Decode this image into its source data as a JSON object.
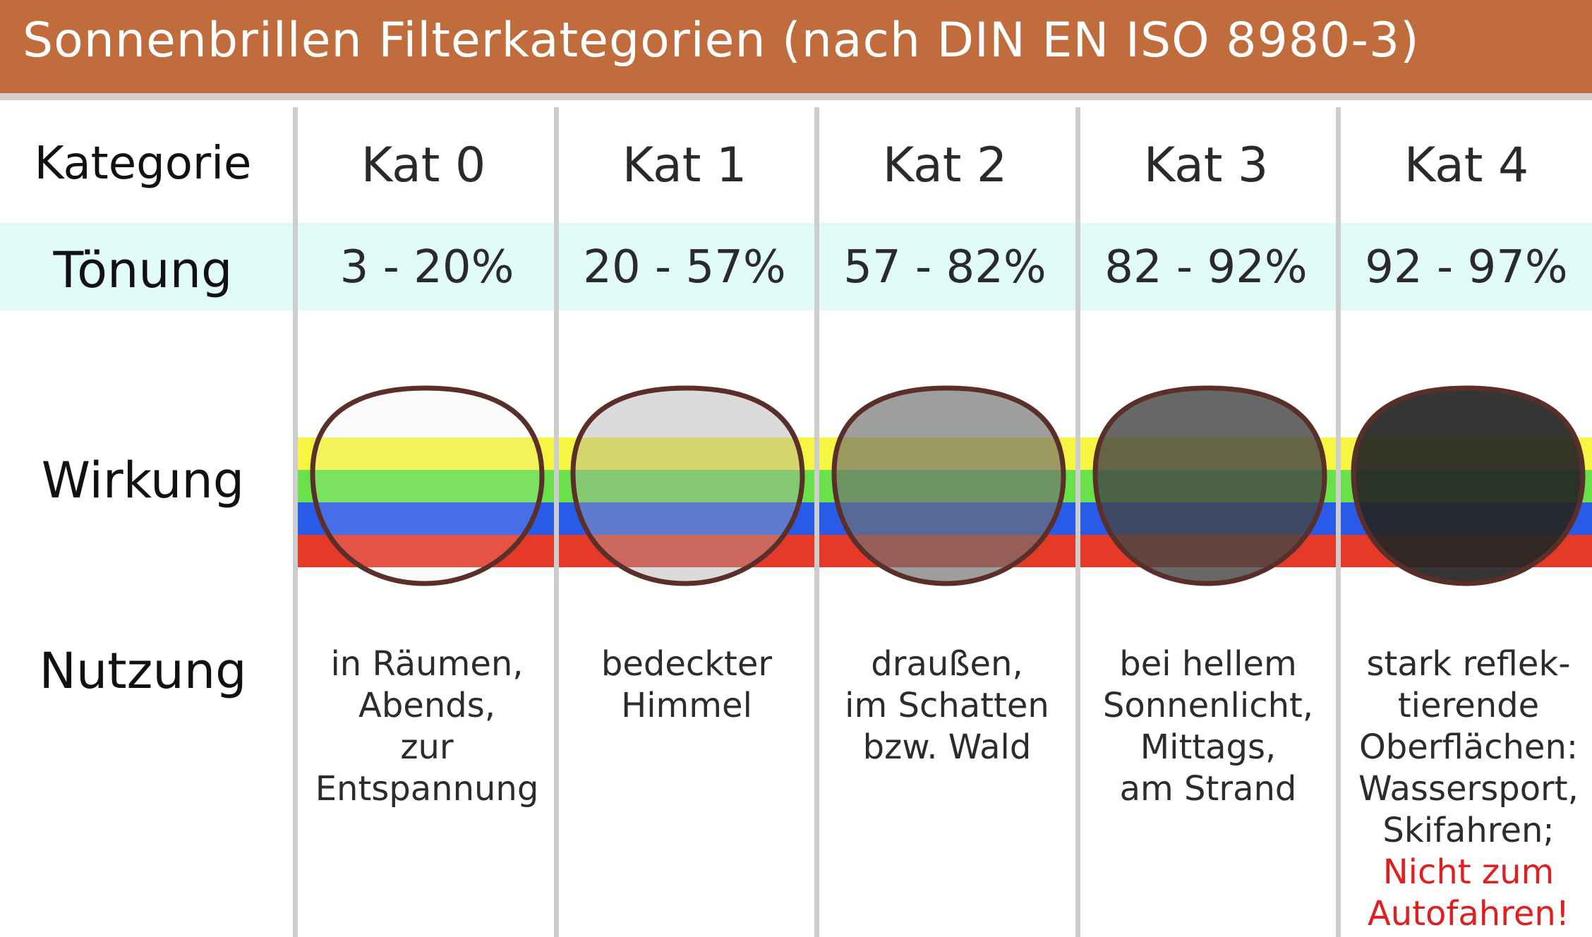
{
  "header": {
    "title": "Sonnenbrillen Filterkategorien (nach DIN EN ISO 8980-3)"
  },
  "rows": {
    "category": "Kategorie",
    "tint": "Tönung",
    "effect": "Wirkung",
    "usage": "Nutzung"
  },
  "categories": [
    {
      "label": "Kat 0",
      "tint": "3 - 20%",
      "usage": [
        "in Räumen,",
        "Abends,",
        "zur",
        "Entspannung"
      ],
      "warning": [],
      "lens_fill": "#e6e6e6",
      "lens_opacity": 0.15
    },
    {
      "label": "Kat 1",
      "tint": "20 - 57%",
      "usage": [
        "bedeckter",
        "Himmel"
      ],
      "warning": [],
      "lens_fill": "#a9a9a9",
      "lens_opacity": 0.42
    },
    {
      "label": "Kat 2",
      "tint": "57 - 82%",
      "usage": [
        "draußen,",
        "im Schatten",
        "bzw. Wald"
      ],
      "warning": [],
      "lens_fill": "#707070",
      "lens_opacity": 0.68
    },
    {
      "label": "Kat 3",
      "tint": "82 - 92%",
      "usage": [
        "bei hellem",
        "Sonnenlicht,",
        "Mittags,",
        "am Strand"
      ],
      "warning": [],
      "lens_fill": "#454545",
      "lens_opacity": 0.82
    },
    {
      "label": "Kat 4",
      "tint": "92 - 97%",
      "usage": [
        "stark reflek-",
        "tierende",
        "Oberflächen:",
        "Wassersport,",
        "Skifahren;"
      ],
      "warning": [
        "Nicht zum",
        "Autofahren!"
      ],
      "lens_fill": "#262626",
      "lens_opacity": 0.93
    }
  ],
  "colors": {
    "header_bg": "#c06c3c",
    "tint_row_bg": "#e0fbf8",
    "divider": "#cdcdcd",
    "lens_rim": "#5a2f2a",
    "warning_text": "#e02020",
    "spectrum": [
      "#f5f542",
      "#6ae04a",
      "#2a5ae8",
      "#e53a28"
    ]
  }
}
